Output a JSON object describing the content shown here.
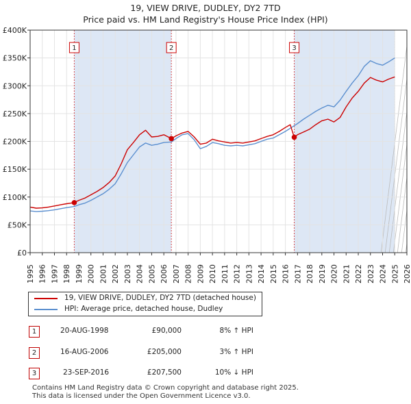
{
  "chart_data": {
    "type": "line",
    "title": "19, VIEW DRIVE, DUDLEY, DY2 7TD",
    "subtitle": "Price paid vs. HM Land Registry's House Price Index (HPI)",
    "xlabel": "",
    "ylabel": "",
    "xlim": [
      1995,
      2026
    ],
    "ylim": [
      0,
      400000
    ],
    "x_ticks": [
      "1995",
      "1996",
      "1997",
      "1998",
      "1999",
      "2000",
      "2001",
      "2002",
      "2003",
      "2004",
      "2005",
      "2006",
      "2007",
      "2008",
      "2009",
      "2010",
      "2011",
      "2012",
      "2013",
      "2014",
      "2015",
      "2016",
      "2017",
      "2018",
      "2019",
      "2020",
      "2021",
      "2022",
      "2023",
      "2024",
      "2025",
      "2026"
    ],
    "y_ticks": [
      {
        "value": 0,
        "label": "£0"
      },
      {
        "value": 50000,
        "label": "£50K"
      },
      {
        "value": 100000,
        "label": "£100K"
      },
      {
        "value": 150000,
        "label": "£150K"
      },
      {
        "value": 200000,
        "label": "£200K"
      },
      {
        "value": 250000,
        "label": "£250K"
      },
      {
        "value": 300000,
        "label": "£300K"
      },
      {
        "value": 350000,
        "label": "£350K"
      },
      {
        "value": 400000,
        "label": "£400K"
      }
    ],
    "grid": true,
    "colors": {
      "property": "#cc0000",
      "hpi": "#5b8fcf",
      "shade": "#dde7f5",
      "vline": "#cc0000"
    },
    "series": [
      {
        "name": "19, VIEW DRIVE, DUDLEY, DY2 7TD (detached house)",
        "x": [
          1995.0,
          1995.5,
          1996.0,
          1996.5,
          1997.0,
          1997.5,
          1998.0,
          1998.63,
          1999.0,
          1999.5,
          2000.0,
          2000.5,
          2001.0,
          2001.5,
          2002.0,
          2002.5,
          2003.0,
          2003.5,
          2004.0,
          2004.5,
          2005.0,
          2005.5,
          2006.0,
          2006.62,
          2007.0,
          2007.5,
          2008.0,
          2008.5,
          2009.0,
          2009.5,
          2010.0,
          2010.5,
          2011.0,
          2011.5,
          2012.0,
          2012.5,
          2013.0,
          2013.5,
          2014.0,
          2014.5,
          2015.0,
          2015.5,
          2016.0,
          2016.4,
          2016.73,
          2017.0,
          2017.5,
          2018.0,
          2018.5,
          2019.0,
          2019.5,
          2020.0,
          2020.5,
          2021.0,
          2021.5,
          2022.0,
          2022.5,
          2023.0,
          2023.5,
          2024.0,
          2024.5,
          2025.0
        ],
        "values": [
          82000,
          80000,
          80500,
          82000,
          84000,
          86000,
          88000,
          90000,
          94000,
          98000,
          104000,
          110000,
          117000,
          126000,
          138000,
          160000,
          185000,
          198000,
          212000,
          220000,
          208000,
          209000,
          212000,
          205000,
          210000,
          215000,
          218000,
          208000,
          195000,
          197000,
          204000,
          201000,
          199000,
          197000,
          198000,
          197000,
          199000,
          201000,
          205000,
          209000,
          212000,
          218000,
          225000,
          230000,
          207500,
          212000,
          217000,
          222000,
          230000,
          237000,
          240000,
          235000,
          243000,
          262000,
          278000,
          290000,
          305000,
          315000,
          310000,
          307000,
          312000,
          316000
        ]
      },
      {
        "name": "HPI: Average price, detached house, Dudley",
        "x": [
          1995.0,
          1995.5,
          1996.0,
          1996.5,
          1997.0,
          1997.5,
          1998.0,
          1998.63,
          1999.0,
          1999.5,
          2000.0,
          2000.5,
          2001.0,
          2001.5,
          2002.0,
          2002.5,
          2003.0,
          2003.5,
          2004.0,
          2004.5,
          2005.0,
          2005.5,
          2006.0,
          2006.62,
          2007.0,
          2007.5,
          2008.0,
          2008.5,
          2009.0,
          2009.5,
          2010.0,
          2010.5,
          2011.0,
          2011.5,
          2012.0,
          2012.5,
          2013.0,
          2013.5,
          2014.0,
          2014.5,
          2015.0,
          2015.5,
          2016.0,
          2016.5,
          2017.0,
          2017.5,
          2018.0,
          2018.5,
          2019.0,
          2019.5,
          2020.0,
          2020.5,
          2021.0,
          2021.5,
          2022.0,
          2022.5,
          2023.0,
          2023.5,
          2024.0,
          2024.5,
          2025.0
        ],
        "values": [
          75000,
          74000,
          74500,
          75500,
          77000,
          79000,
          81000,
          83000,
          86000,
          89000,
          94000,
          100000,
          106000,
          114000,
          124000,
          142000,
          162000,
          176000,
          190000,
          197000,
          193000,
          195000,
          198000,
          199000,
          205000,
          212000,
          214000,
          203000,
          187000,
          191000,
          198000,
          196000,
          193000,
          192000,
          193000,
          192000,
          194000,
          196000,
          200000,
          204000,
          206000,
          212000,
          218000,
          225000,
          232000,
          240000,
          247000,
          254000,
          260000,
          265000,
          262000,
          274000,
          290000,
          305000,
          318000,
          335000,
          345000,
          340000,
          337000,
          343000,
          350000
        ]
      }
    ],
    "sales": [
      {
        "n": "1",
        "x": 1998.63,
        "date": "20-AUG-1998",
        "price": "£90,000",
        "value": 90000,
        "hpi": "8% ↑ HPI"
      },
      {
        "n": "2",
        "x": 2006.62,
        "date": "16-AUG-2006",
        "price": "£205,000",
        "value": 205000,
        "hpi": "3% ↑ HPI"
      },
      {
        "n": "3",
        "x": 2016.73,
        "date": "23-SEP-2016",
        "price": "£207,500",
        "value": 207500,
        "hpi": "10% ↓ HPI"
      }
    ],
    "legend": {
      "property": "19, VIEW DRIVE, DUDLEY, DY2 7TD (detached house)",
      "hpi": "HPI: Average price, detached house, Dudley"
    }
  },
  "footer": {
    "line1": "Contains HM Land Registry data © Crown copyright and database right 2025.",
    "line2": "This data is licensed under the Open Government Licence v3.0."
  }
}
